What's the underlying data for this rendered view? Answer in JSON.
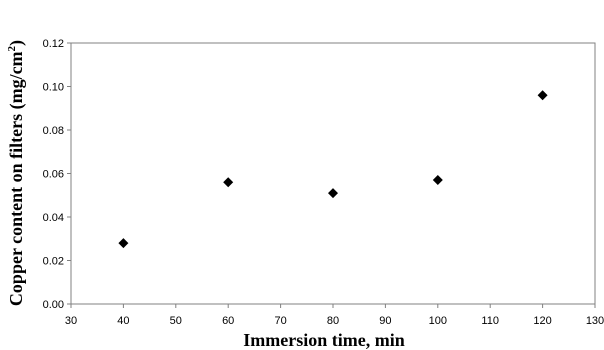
{
  "chart_data": {
    "type": "scatter",
    "title": "",
    "xlabel": "Immersion time, min",
    "ylabel_main": "Copper content on filters (mg/cm",
    "ylabel_sup": "2",
    "ylabel_tail": ")",
    "xlim": [
      30,
      130
    ],
    "ylim": [
      0,
      0.12
    ],
    "x_ticks": [
      "30",
      "40",
      "50",
      "60",
      "70",
      "80",
      "90",
      "100",
      "110",
      "120",
      "130"
    ],
    "y_ticks": [
      "0.00",
      "0.02",
      "0.04",
      "0.06",
      "0.08",
      "0.10",
      "0.12"
    ],
    "grid": false,
    "legend": "none",
    "marker": "diamond",
    "marker_color": "#000000",
    "series": [
      {
        "x": [
          40,
          60,
          80,
          100,
          120
        ],
        "y": [
          0.028,
          0.056,
          0.051,
          0.057,
          0.096
        ]
      }
    ]
  }
}
